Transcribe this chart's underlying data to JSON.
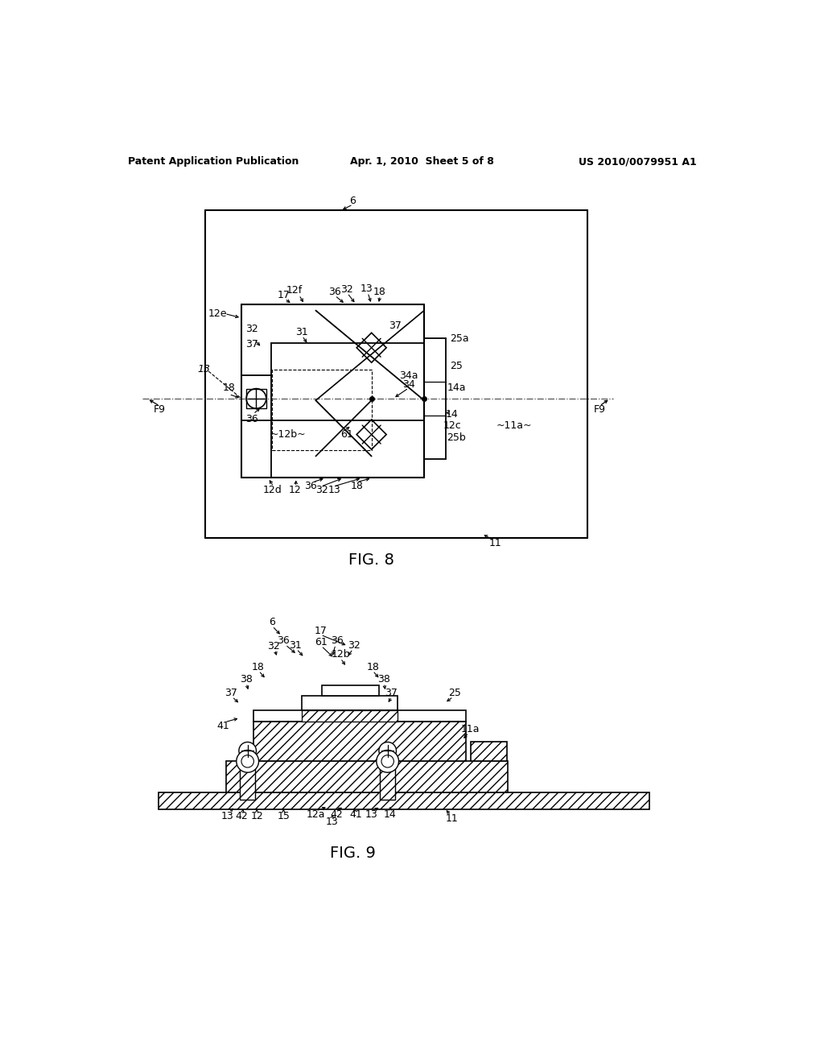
{
  "bg_color": "#ffffff",
  "header_left": "Patent Application Publication",
  "header_mid": "Apr. 1, 2010  Sheet 5 of 8",
  "header_right": "US 2010/0079951 A1",
  "fig8_label": "FIG. 8",
  "fig9_label": "FIG. 9",
  "line_color": "#000000"
}
